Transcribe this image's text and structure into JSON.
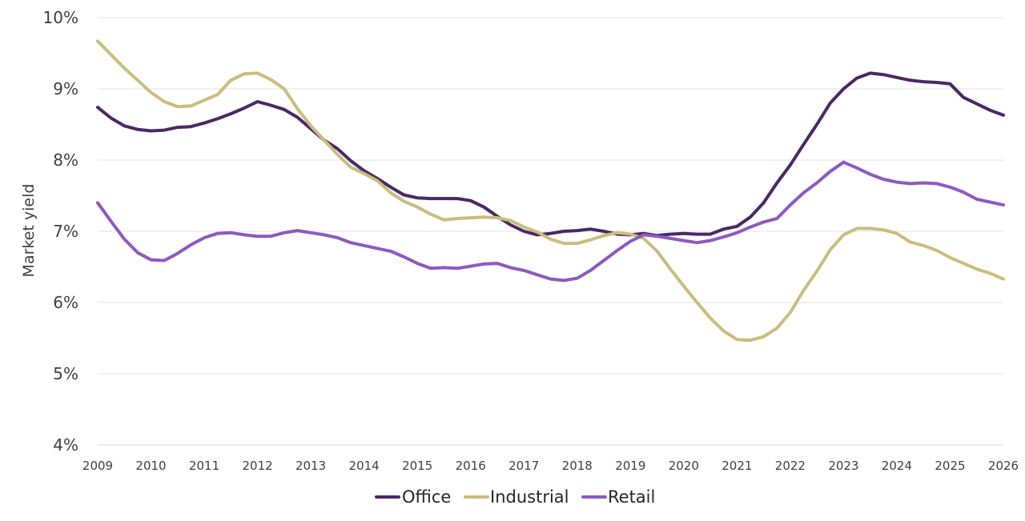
{
  "chart_data": {
    "type": "line",
    "ylabel": "Market yield",
    "xlabel": "",
    "title": "",
    "ylim": [
      4,
      10
    ],
    "xlim": [
      2009,
      2026
    ],
    "y_ticks": [
      "4%",
      "5%",
      "6%",
      "7%",
      "8%",
      "9%",
      "10%"
    ],
    "y_tick_values": [
      4,
      5,
      6,
      7,
      8,
      9,
      10
    ],
    "x_ticks": [
      "2009",
      "2010",
      "2011",
      "2012",
      "2013",
      "2014",
      "2015",
      "2016",
      "2017",
      "2018",
      "2019",
      "2020",
      "2021",
      "2022",
      "2023",
      "2024",
      "2025",
      "2026"
    ],
    "grid": "horizontal",
    "legend_position": "bottom",
    "x": [
      2009.0,
      2009.25,
      2009.5,
      2009.75,
      2010.0,
      2010.25,
      2010.5,
      2010.75,
      2011.0,
      2011.25,
      2011.5,
      2011.75,
      2012.0,
      2012.25,
      2012.5,
      2012.75,
      2013.0,
      2013.25,
      2013.5,
      2013.75,
      2014.0,
      2014.25,
      2014.5,
      2014.75,
      2015.0,
      2015.25,
      2015.5,
      2015.75,
      2016.0,
      2016.25,
      2016.5,
      2016.75,
      2017.0,
      2017.25,
      2017.5,
      2017.75,
      2018.0,
      2018.25,
      2018.5,
      2018.75,
      2019.0,
      2019.25,
      2019.5,
      2019.75,
      2020.0,
      2020.25,
      2020.5,
      2020.75,
      2021.0,
      2021.25,
      2021.5,
      2021.75,
      2022.0,
      2022.25,
      2022.5,
      2022.75,
      2023.0,
      2023.25,
      2023.5,
      2023.75,
      2024.0,
      2024.25,
      2024.5,
      2024.75,
      2025.0,
      2025.25,
      2025.5,
      2025.75,
      2026.0
    ],
    "series": [
      {
        "name": "Office",
        "color": "#4a2866",
        "values": [
          8.74,
          8.59,
          8.48,
          8.43,
          8.41,
          8.42,
          8.46,
          8.47,
          8.52,
          8.58,
          8.65,
          8.73,
          8.82,
          8.77,
          8.71,
          8.6,
          8.44,
          8.28,
          8.16,
          7.99,
          7.85,
          7.74,
          7.62,
          7.51,
          7.47,
          7.46,
          7.46,
          7.46,
          7.43,
          7.34,
          7.21,
          7.09,
          7.0,
          6.95,
          6.97,
          7.0,
          7.01,
          7.03,
          7.0,
          6.96,
          6.95,
          6.97,
          6.94,
          6.96,
          6.97,
          6.96,
          6.96,
          7.03,
          7.07,
          7.2,
          7.4,
          7.68,
          7.93,
          8.22,
          8.5,
          8.8,
          9.0,
          9.15,
          9.22,
          9.2,
          9.16,
          9.12,
          9.1,
          9.09,
          9.07,
          8.88,
          8.79,
          8.7,
          8.63
        ]
      },
      {
        "name": "Industrial",
        "color": "#cbbd7c",
        "values": [
          9.67,
          9.48,
          9.29,
          9.12,
          8.95,
          8.82,
          8.75,
          8.76,
          8.84,
          8.92,
          9.12,
          9.21,
          9.22,
          9.13,
          9.0,
          8.72,
          8.48,
          8.28,
          8.08,
          7.9,
          7.81,
          7.71,
          7.54,
          7.42,
          7.34,
          7.24,
          7.16,
          7.18,
          7.19,
          7.2,
          7.19,
          7.15,
          7.06,
          6.99,
          6.89,
          6.83,
          6.83,
          6.88,
          6.94,
          6.98,
          6.96,
          6.9,
          6.72,
          6.47,
          6.23,
          6.0,
          5.78,
          5.6,
          5.48,
          5.47,
          5.52,
          5.64,
          5.86,
          6.17,
          6.44,
          6.74,
          6.95,
          7.04,
          7.04,
          7.02,
          6.97,
          6.85,
          6.8,
          6.73,
          6.63,
          6.55,
          6.47,
          6.41,
          6.33
        ]
      },
      {
        "name": "Retail",
        "color": "#8d5ac0",
        "values": [
          7.4,
          7.14,
          6.89,
          6.7,
          6.6,
          6.59,
          6.69,
          6.81,
          6.91,
          6.97,
          6.98,
          6.95,
          6.93,
          6.93,
          6.98,
          7.01,
          6.98,
          6.95,
          6.91,
          6.84,
          6.8,
          6.76,
          6.72,
          6.64,
          6.55,
          6.48,
          6.49,
          6.48,
          6.51,
          6.54,
          6.55,
          6.49,
          6.45,
          6.39,
          6.33,
          6.31,
          6.34,
          6.45,
          6.59,
          6.73,
          6.86,
          6.95,
          6.93,
          6.9,
          6.87,
          6.84,
          6.87,
          6.92,
          6.98,
          7.06,
          7.13,
          7.18,
          7.37,
          7.54,
          7.68,
          7.84,
          7.97,
          7.89,
          7.8,
          7.73,
          7.69,
          7.67,
          7.68,
          7.67,
          7.62,
          7.55,
          7.45,
          7.41,
          7.37
        ]
      }
    ]
  }
}
